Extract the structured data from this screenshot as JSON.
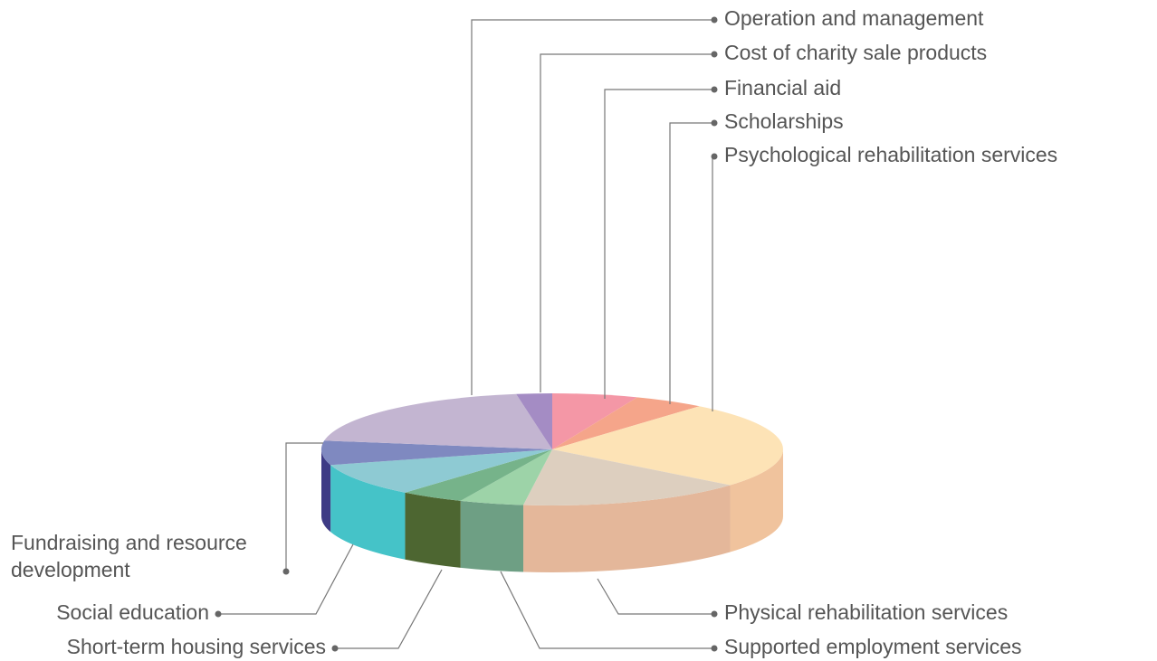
{
  "chart_data": {
    "type": "pie3d",
    "categories": [
      "Financial aid",
      "Scholarships",
      "Psychological rehabilitation services",
      "Physical rehabilitation services",
      "Supported employment services",
      "Short-term housing services",
      "Social education",
      "Fundraising and resource development",
      "Operation and management",
      "Cost of charity sale products"
    ],
    "values": [
      6,
      5,
      25,
      16,
      4.5,
      4.5,
      9.5,
      7,
      20,
      2.5
    ],
    "colors": [
      "#f497a6",
      "#f5a58a",
      "#fde3b6",
      "#ddcfbf",
      "#9dd3a8",
      "#76b38a",
      "#8ecad3",
      "#7f89c0",
      "#c3b5d1",
      "#a48cc4"
    ],
    "side_colors": [
      "#d9808f",
      "#dd8d73",
      "#f0c39d",
      "#e4b79a",
      "#6e9f84",
      "#4d6631",
      "#45c3c8",
      "#3e3b85",
      "#9b8cae",
      "#7e68a2"
    ]
  }
}
